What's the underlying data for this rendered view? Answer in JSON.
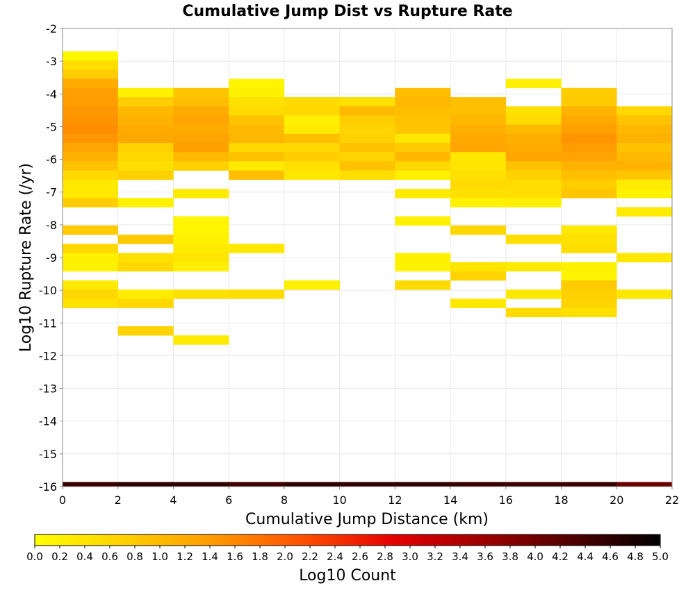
{
  "chart_data": {
    "type": "heatmap",
    "title": "Cumulative Jump Dist vs Rupture Rate",
    "xlabel": "Cumulative Jump Distance (km)",
    "ylabel": "Log10 Rupture Rate (/yr)",
    "xlim": [
      0,
      22
    ],
    "ylim": [
      -16,
      -2
    ],
    "x_bin_width": 2,
    "y_bin_height": 0.28,
    "grid": true,
    "xticks": [
      0,
      2,
      4,
      6,
      8,
      10,
      12,
      14,
      16,
      18,
      20,
      22
    ],
    "yticks": [
      -2,
      -3,
      -4,
      -5,
      -6,
      -7,
      -8,
      -9,
      -10,
      -11,
      -12,
      -13,
      -14,
      -15,
      -16
    ],
    "colorbar": {
      "label": "Log10 Count",
      "range": [
        0.0,
        5.0
      ],
      "ticks": [
        "0.0",
        "0.2",
        "0.4",
        "0.6",
        "0.8",
        "1.0",
        "1.2",
        "1.4",
        "1.6",
        "1.8",
        "2.0",
        "2.2",
        "2.4",
        "2.6",
        "2.8",
        "3.0",
        "3.2",
        "3.4",
        "3.6",
        "3.8",
        "4.0",
        "4.2",
        "4.4",
        "4.6",
        "4.8",
        "5.0"
      ],
      "stops": [
        "#ffff00",
        "#ffd000",
        "#ff9a00",
        "#ff5000",
        "#e60000",
        "#a00000",
        "#500000",
        "#000000"
      ],
      "placement": "bottom"
    },
    "cells": [
      {
        "x": 0,
        "y": -2.84,
        "v": 0.1
      },
      {
        "x": 0,
        "y": -3.12,
        "v": 0.5
      },
      {
        "x": 0,
        "y": -3.4,
        "v": 0.75
      },
      {
        "x": 0,
        "y": -3.68,
        "v": 1.2
      },
      {
        "x": 0,
        "y": -3.96,
        "v": 1.35
      },
      {
        "x": 0,
        "y": -4.24,
        "v": 1.4
      },
      {
        "x": 0,
        "y": -4.52,
        "v": 1.45
      },
      {
        "x": 0,
        "y": -4.8,
        "v": 1.5
      },
      {
        "x": 0,
        "y": -5.08,
        "v": 1.55
      },
      {
        "x": 0,
        "y": -5.36,
        "v": 1.45
      },
      {
        "x": 0,
        "y": -5.64,
        "v": 1.3
      },
      {
        "x": 0,
        "y": -5.92,
        "v": 1.1
      },
      {
        "x": 0,
        "y": -6.2,
        "v": 0.9
      },
      {
        "x": 0,
        "y": -6.48,
        "v": 0.6
      },
      {
        "x": 0,
        "y": -6.76,
        "v": 0.35
      },
      {
        "x": 0,
        "y": -7.04,
        "v": 0.35
      },
      {
        "x": 0,
        "y": -7.32,
        "v": 0.75
      },
      {
        "x": 0,
        "y": -8.16,
        "v": 0.8
      },
      {
        "x": 0,
        "y": -8.72,
        "v": 0.6
      },
      {
        "x": 0,
        "y": -9.0,
        "v": 0.2
      },
      {
        "x": 0,
        "y": -9.28,
        "v": 0.2
      },
      {
        "x": 0,
        "y": -9.84,
        "v": 0.3
      },
      {
        "x": 0,
        "y": -10.12,
        "v": 0.6
      },
      {
        "x": 0,
        "y": -10.4,
        "v": 0.45
      },
      {
        "x": 2,
        "y": -3.96,
        "v": 0.2
      },
      {
        "x": 2,
        "y": -4.24,
        "v": 0.75
      },
      {
        "x": 2,
        "y": -4.52,
        "v": 1.0
      },
      {
        "x": 2,
        "y": -4.8,
        "v": 1.1
      },
      {
        "x": 2,
        "y": -5.08,
        "v": 1.2
      },
      {
        "x": 2,
        "y": -5.36,
        "v": 1.25
      },
      {
        "x": 2,
        "y": -5.64,
        "v": 0.7
      },
      {
        "x": 2,
        "y": -5.92,
        "v": 0.6
      },
      {
        "x": 2,
        "y": -6.2,
        "v": 0.5
      },
      {
        "x": 2,
        "y": -6.48,
        "v": 0.7
      },
      {
        "x": 2,
        "y": -7.32,
        "v": 0.2
      },
      {
        "x": 2,
        "y": -8.44,
        "v": 0.8
      },
      {
        "x": 2,
        "y": -9.0,
        "v": 0.45
      },
      {
        "x": 2,
        "y": -9.28,
        "v": 0.6
      },
      {
        "x": 2,
        "y": -10.12,
        "v": 0.3
      },
      {
        "x": 2,
        "y": -10.4,
        "v": 0.6
      },
      {
        "x": 2,
        "y": -11.24,
        "v": 0.65
      },
      {
        "x": 4,
        "y": -3.96,
        "v": 0.85
      },
      {
        "x": 4,
        "y": -4.24,
        "v": 0.95
      },
      {
        "x": 4,
        "y": -4.52,
        "v": 1.2
      },
      {
        "x": 4,
        "y": -4.8,
        "v": 1.3
      },
      {
        "x": 4,
        "y": -5.08,
        "v": 1.2
      },
      {
        "x": 4,
        "y": -5.36,
        "v": 1.3
      },
      {
        "x": 4,
        "y": -5.64,
        "v": 1.35
      },
      {
        "x": 4,
        "y": -5.92,
        "v": 1.0
      },
      {
        "x": 4,
        "y": -6.2,
        "v": 0.7
      },
      {
        "x": 4,
        "y": -7.04,
        "v": 0.3
      },
      {
        "x": 4,
        "y": -7.88,
        "v": 0.15
      },
      {
        "x": 4,
        "y": -8.16,
        "v": 0.15
      },
      {
        "x": 4,
        "y": -8.44,
        "v": 0.2
      },
      {
        "x": 4,
        "y": -8.72,
        "v": 0.3
      },
      {
        "x": 4,
        "y": -9.0,
        "v": 0.4
      },
      {
        "x": 4,
        "y": -9.28,
        "v": 0.25
      },
      {
        "x": 4,
        "y": -10.12,
        "v": 0.45
      },
      {
        "x": 4,
        "y": -11.52,
        "v": 0.3
      },
      {
        "x": 6,
        "y": -3.68,
        "v": 0.15
      },
      {
        "x": 6,
        "y": -3.96,
        "v": 0.2
      },
      {
        "x": 6,
        "y": -4.24,
        "v": 0.45
      },
      {
        "x": 6,
        "y": -4.52,
        "v": 0.55
      },
      {
        "x": 6,
        "y": -4.8,
        "v": 0.9
      },
      {
        "x": 6,
        "y": -5.08,
        "v": 1.0
      },
      {
        "x": 6,
        "y": -5.36,
        "v": 1.05
      },
      {
        "x": 6,
        "y": -5.64,
        "v": 0.6
      },
      {
        "x": 6,
        "y": -5.92,
        "v": 0.9
      },
      {
        "x": 6,
        "y": -6.2,
        "v": 0.3
      },
      {
        "x": 6,
        "y": -6.48,
        "v": 0.95
      },
      {
        "x": 6,
        "y": -8.72,
        "v": 0.35
      },
      {
        "x": 6,
        "y": -10.12,
        "v": 0.5
      },
      {
        "x": 8,
        "y": -4.24,
        "v": 0.55
      },
      {
        "x": 8,
        "y": -4.52,
        "v": 0.6
      },
      {
        "x": 8,
        "y": -4.8,
        "v": 0.25
      },
      {
        "x": 8,
        "y": -5.08,
        "v": 0.3
      },
      {
        "x": 8,
        "y": -5.36,
        "v": 0.95
      },
      {
        "x": 8,
        "y": -5.64,
        "v": 0.6
      },
      {
        "x": 8,
        "y": -5.92,
        "v": 0.75
      },
      {
        "x": 8,
        "y": -6.2,
        "v": 0.45
      },
      {
        "x": 8,
        "y": -6.48,
        "v": 0.35
      },
      {
        "x": 8,
        "y": -9.84,
        "v": 0.25
      },
      {
        "x": 10,
        "y": -4.24,
        "v": 0.45
      },
      {
        "x": 10,
        "y": -4.52,
        "v": 1.0
      },
      {
        "x": 10,
        "y": -4.8,
        "v": 0.75
      },
      {
        "x": 10,
        "y": -5.08,
        "v": 0.65
      },
      {
        "x": 10,
        "y": -5.36,
        "v": 0.7
      },
      {
        "x": 10,
        "y": -5.64,
        "v": 0.9
      },
      {
        "x": 10,
        "y": -5.92,
        "v": 0.65
      },
      {
        "x": 10,
        "y": -6.2,
        "v": 0.9
      },
      {
        "x": 10,
        "y": -6.48,
        "v": 0.5
      },
      {
        "x": 12,
        "y": -3.96,
        "v": 0.95
      },
      {
        "x": 12,
        "y": -4.24,
        "v": 1.05
      },
      {
        "x": 12,
        "y": -4.52,
        "v": 0.95
      },
      {
        "x": 12,
        "y": -4.8,
        "v": 0.9
      },
      {
        "x": 12,
        "y": -5.08,
        "v": 0.85
      },
      {
        "x": 12,
        "y": -5.36,
        "v": 0.35
      },
      {
        "x": 12,
        "y": -5.64,
        "v": 0.8
      },
      {
        "x": 12,
        "y": -5.92,
        "v": 1.05
      },
      {
        "x": 12,
        "y": -6.2,
        "v": 0.6
      },
      {
        "x": 12,
        "y": -6.48,
        "v": 0.25
      },
      {
        "x": 12,
        "y": -7.04,
        "v": 0.3
      },
      {
        "x": 12,
        "y": -7.88,
        "v": 0.25
      },
      {
        "x": 12,
        "y": -9.0,
        "v": 0.2
      },
      {
        "x": 12,
        "y": -9.28,
        "v": 0.2
      },
      {
        "x": 12,
        "y": -9.84,
        "v": 0.55
      },
      {
        "x": 14,
        "y": -4.24,
        "v": 0.95
      },
      {
        "x": 14,
        "y": -4.52,
        "v": 0.95
      },
      {
        "x": 14,
        "y": -4.8,
        "v": 1.05
      },
      {
        "x": 14,
        "y": -5.08,
        "v": 1.15
      },
      {
        "x": 14,
        "y": -5.36,
        "v": 1.25
      },
      {
        "x": 14,
        "y": -5.64,
        "v": 1.3
      },
      {
        "x": 14,
        "y": -5.92,
        "v": 0.35
      },
      {
        "x": 14,
        "y": -6.2,
        "v": 0.4
      },
      {
        "x": 14,
        "y": -6.48,
        "v": 0.45
      },
      {
        "x": 14,
        "y": -6.76,
        "v": 0.55
      },
      {
        "x": 14,
        "y": -7.04,
        "v": 0.45
      },
      {
        "x": 14,
        "y": -7.32,
        "v": 0.2
      },
      {
        "x": 14,
        "y": -8.16,
        "v": 0.6
      },
      {
        "x": 14,
        "y": -9.28,
        "v": 0.4
      },
      {
        "x": 14,
        "y": -9.56,
        "v": 0.65
      },
      {
        "x": 14,
        "y": -10.4,
        "v": 0.35
      },
      {
        "x": 16,
        "y": -3.68,
        "v": 0.25
      },
      {
        "x": 16,
        "y": -4.52,
        "v": 0.45
      },
      {
        "x": 16,
        "y": -4.8,
        "v": 0.55
      },
      {
        "x": 16,
        "y": -5.08,
        "v": 1.0
      },
      {
        "x": 16,
        "y": -5.36,
        "v": 1.15
      },
      {
        "x": 16,
        "y": -5.64,
        "v": 1.2
      },
      {
        "x": 16,
        "y": -5.92,
        "v": 1.3
      },
      {
        "x": 16,
        "y": -6.2,
        "v": 0.9
      },
      {
        "x": 16,
        "y": -6.48,
        "v": 0.7
      },
      {
        "x": 16,
        "y": -6.76,
        "v": 0.55
      },
      {
        "x": 16,
        "y": -7.04,
        "v": 0.5
      },
      {
        "x": 16,
        "y": -7.32,
        "v": 0.25
      },
      {
        "x": 16,
        "y": -8.44,
        "v": 0.5
      },
      {
        "x": 16,
        "y": -9.28,
        "v": 0.3
      },
      {
        "x": 16,
        "y": -10.12,
        "v": 0.35
      },
      {
        "x": 16,
        "y": -10.68,
        "v": 0.55
      },
      {
        "x": 18,
        "y": -3.96,
        "v": 0.75
      },
      {
        "x": 18,
        "y": -4.24,
        "v": 0.8
      },
      {
        "x": 18,
        "y": -4.52,
        "v": 1.1
      },
      {
        "x": 18,
        "y": -4.8,
        "v": 1.25
      },
      {
        "x": 18,
        "y": -5.08,
        "v": 1.35
      },
      {
        "x": 18,
        "y": -5.36,
        "v": 1.5
      },
      {
        "x": 18,
        "y": -5.64,
        "v": 1.4
      },
      {
        "x": 18,
        "y": -5.92,
        "v": 1.3
      },
      {
        "x": 18,
        "y": -6.2,
        "v": 1.1
      },
      {
        "x": 18,
        "y": -6.48,
        "v": 0.95
      },
      {
        "x": 18,
        "y": -6.76,
        "v": 0.75
      },
      {
        "x": 18,
        "y": -7.04,
        "v": 0.85
      },
      {
        "x": 18,
        "y": -8.16,
        "v": 0.35
      },
      {
        "x": 18,
        "y": -8.44,
        "v": 0.45
      },
      {
        "x": 18,
        "y": -8.72,
        "v": 0.5
      },
      {
        "x": 18,
        "y": -9.28,
        "v": 0.2
      },
      {
        "x": 18,
        "y": -9.56,
        "v": 0.15
      },
      {
        "x": 18,
        "y": -9.84,
        "v": 0.8
      },
      {
        "x": 18,
        "y": -10.12,
        "v": 0.7
      },
      {
        "x": 18,
        "y": -10.4,
        "v": 0.65
      },
      {
        "x": 18,
        "y": -10.68,
        "v": 0.45
      },
      {
        "x": 20,
        "y": -4.52,
        "v": 0.6
      },
      {
        "x": 20,
        "y": -4.8,
        "v": 0.9
      },
      {
        "x": 20,
        "y": -5.08,
        "v": 1.05
      },
      {
        "x": 20,
        "y": -5.36,
        "v": 1.1
      },
      {
        "x": 20,
        "y": -5.64,
        "v": 0.9
      },
      {
        "x": 20,
        "y": -5.92,
        "v": 1.0
      },
      {
        "x": 20,
        "y": -6.2,
        "v": 1.1
      },
      {
        "x": 20,
        "y": -6.48,
        "v": 0.85
      },
      {
        "x": 20,
        "y": -6.76,
        "v": 0.3
      },
      {
        "x": 20,
        "y": -7.04,
        "v": 0.2
      },
      {
        "x": 20,
        "y": -7.6,
        "v": 0.3
      },
      {
        "x": 20,
        "y": -9.0,
        "v": 0.35
      },
      {
        "x": 20,
        "y": -10.12,
        "v": 0.35
      },
      {
        "x": 0,
        "y": -16.0,
        "v": 4.5
      },
      {
        "x": 2,
        "y": -16.0,
        "v": 4.6
      },
      {
        "x": 4,
        "y": -16.0,
        "v": 4.55
      },
      {
        "x": 6,
        "y": -16.0,
        "v": 4.45
      },
      {
        "x": 8,
        "y": -16.0,
        "v": 4.6
      },
      {
        "x": 10,
        "y": -16.0,
        "v": 4.55
      },
      {
        "x": 12,
        "y": -16.0,
        "v": 4.55
      },
      {
        "x": 14,
        "y": -16.0,
        "v": 4.5
      },
      {
        "x": 16,
        "y": -16.0,
        "v": 4.45
      },
      {
        "x": 18,
        "y": -16.0,
        "v": 4.5
      },
      {
        "x": 20,
        "y": -16.0,
        "v": 4.05
      }
    ]
  }
}
